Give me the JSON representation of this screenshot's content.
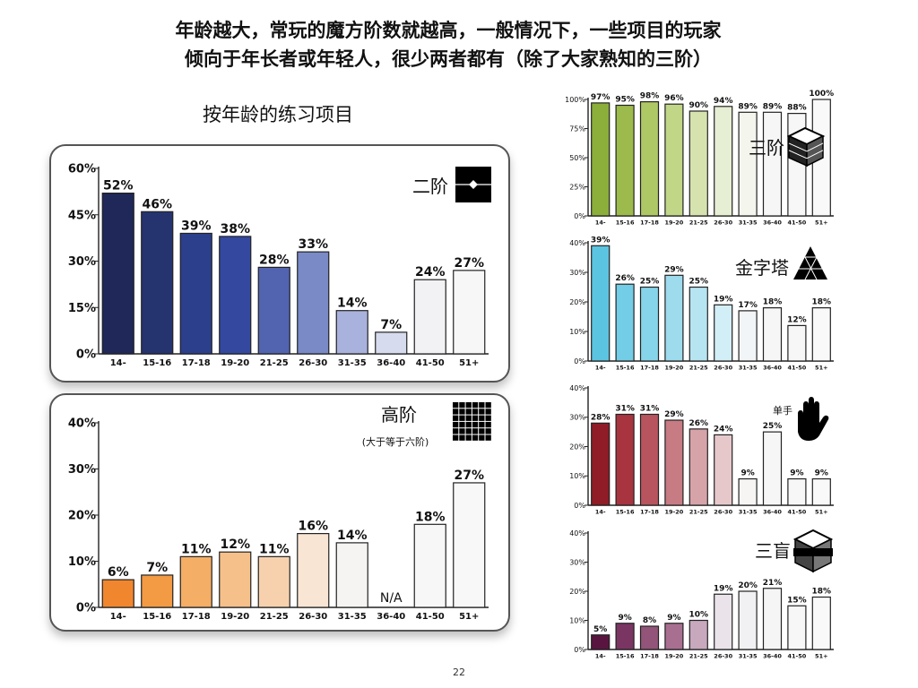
{
  "header": {
    "line1": "年龄越大，常玩的魔方阶数就越高，一般情况下，一些项目的玩家",
    "line2": "倾向于年长者或年轻人，很少两者都有（除了大家熟知的三阶）"
  },
  "section_title": "按年龄的练习项目",
  "page_number": "22",
  "chart_data": [
    {
      "type": "bar",
      "title": "二阶",
      "icon": "2x2-cube-icon",
      "categories": [
        "14-",
        "15-16",
        "17-18",
        "19-20",
        "21-25",
        "26-30",
        "31-35",
        "36-40",
        "41-50",
        "51+"
      ],
      "values": [
        52,
        46,
        39,
        38,
        28,
        33,
        14,
        7,
        24,
        27
      ],
      "value_labels": [
        "52%",
        "46%",
        "39%",
        "38%",
        "28%",
        "33%",
        "14%",
        "7%",
        "24%",
        "27%"
      ],
      "yticks": [
        "0%",
        "15%",
        "30%",
        "45%",
        "60%"
      ],
      "ylim": [
        0,
        60
      ],
      "colors": [
        "#1f2858",
        "#25346f",
        "#2c3f8d",
        "#3448a0",
        "#5264b0",
        "#7a8ac6",
        "#a9b2dc",
        "#d6dbee",
        "#f2f2f4",
        "#f7f7f7"
      ]
    },
    {
      "type": "bar",
      "title": "高阶",
      "subtitle": "(大于等于六阶)",
      "icon": "big-cube-icon",
      "categories": [
        "14-",
        "15-16",
        "17-18",
        "19-20",
        "21-25",
        "26-30",
        "31-35",
        "36-40",
        "41-50",
        "51+"
      ],
      "values": [
        6,
        7,
        11,
        12,
        11,
        16,
        14,
        null,
        18,
        27
      ],
      "value_labels": [
        "6%",
        "7%",
        "11%",
        "12%",
        "11%",
        "16%",
        "14%",
        "N/A",
        "18%",
        "27%"
      ],
      "yticks": [
        "0%",
        "10%",
        "20%",
        "30%",
        "40%"
      ],
      "ylim": [
        0,
        40
      ],
      "colors": [
        "#f0872e",
        "#f29a44",
        "#f4ae66",
        "#f6c08a",
        "#f7d1ad",
        "#f9e5d4",
        "#f6f4f2",
        "#f6f6f6",
        "#f7f7f7",
        "#f8f8f8"
      ]
    },
    {
      "type": "bar",
      "title": "三阶",
      "icon": "3x3-cube-icon",
      "categories": [
        "14-",
        "15-16",
        "17-18",
        "19-20",
        "21-25",
        "26-30",
        "31-35",
        "36-40",
        "41-50",
        "51+"
      ],
      "values": [
        97,
        95,
        98,
        96,
        90,
        94,
        89,
        89,
        88,
        100
      ],
      "value_labels": [
        "97%",
        "95%",
        "98%",
        "96%",
        "90%",
        "94%",
        "89%",
        "89%",
        "88%",
        "100%"
      ],
      "yticks": [
        "0%",
        "25%",
        "50%",
        "75%",
        "100%"
      ],
      "ylim": [
        0,
        100
      ],
      "colors": [
        "#8cae3a",
        "#9cbb4c",
        "#aec865",
        "#c2d688",
        "#d6e3af",
        "#e6eed3",
        "#f4f6ee",
        "#f6f6f6",
        "#f7f7f7",
        "#f9f9f9"
      ]
    },
    {
      "type": "bar",
      "title": "金字塔",
      "icon": "pyraminx-icon",
      "categories": [
        "14-",
        "15-16",
        "17-18",
        "19-20",
        "21-25",
        "26-30",
        "31-35",
        "36-40",
        "41-50",
        "51+"
      ],
      "values": [
        39,
        26,
        25,
        29,
        25,
        19,
        17,
        18,
        12,
        18
      ],
      "value_labels": [
        "39%",
        "26%",
        "25%",
        "29%",
        "25%",
        "19%",
        "17%",
        "18%",
        "12%",
        "18%"
      ],
      "yticks": [
        "0%",
        "10%",
        "20%",
        "30%",
        "40%"
      ],
      "ylim": [
        0,
        40
      ],
      "colors": [
        "#5bc4e0",
        "#73cde6",
        "#86d4e9",
        "#9ddbed",
        "#b6e4f1",
        "#d2eef6",
        "#f2f5f7",
        "#f6f6f6",
        "#f7f7f7",
        "#f9f9f9"
      ]
    },
    {
      "type": "bar",
      "title": "单手",
      "icon": "hand-icon",
      "categories": [
        "14-",
        "15-16",
        "17-18",
        "19-20",
        "21-25",
        "26-30",
        "31-35",
        "36-40",
        "41-50",
        "51+"
      ],
      "values": [
        28,
        31,
        31,
        29,
        26,
        24,
        9,
        25,
        9,
        9
      ],
      "value_labels": [
        "28%",
        "31%",
        "31%",
        "29%",
        "26%",
        "24%",
        "9%",
        "25%",
        "9%",
        "9%"
      ],
      "yticks": [
        "0%",
        "10%",
        "20%",
        "30%",
        "40%"
      ],
      "ylim": [
        0,
        40
      ],
      "colors": [
        "#8f1c26",
        "#a83440",
        "#b8545e",
        "#c77b83",
        "#d6a3a9",
        "#e6c8cb",
        "#f7f4f4",
        "#f6f6f6",
        "#f7f7f7",
        "#f9f9f9"
      ]
    },
    {
      "type": "bar",
      "title": "三盲",
      "icon": "blindfolded-cube-icon",
      "categories": [
        "14-",
        "15-16",
        "17-18",
        "19-20",
        "21-25",
        "26-30",
        "31-35",
        "36-40",
        "41-50",
        "51+"
      ],
      "values": [
        5,
        9,
        8,
        9,
        10,
        19,
        20,
        21,
        15,
        18
      ],
      "value_labels": [
        "5%",
        "9%",
        "8%",
        "9%",
        "10%",
        "19%",
        "20%",
        "21%",
        "15%",
        "18%"
      ],
      "yticks": [
        "0%",
        "10%",
        "20%",
        "30%",
        "40%"
      ],
      "ylim": [
        0,
        40
      ],
      "colors": [
        "#5a1440",
        "#7a3563",
        "#925479",
        "#a96f91",
        "#c8a8bd",
        "#eae4ea",
        "#f1f1f3",
        "#f5f5f5",
        "#f7f7f7",
        "#f9f9f9"
      ]
    }
  ]
}
